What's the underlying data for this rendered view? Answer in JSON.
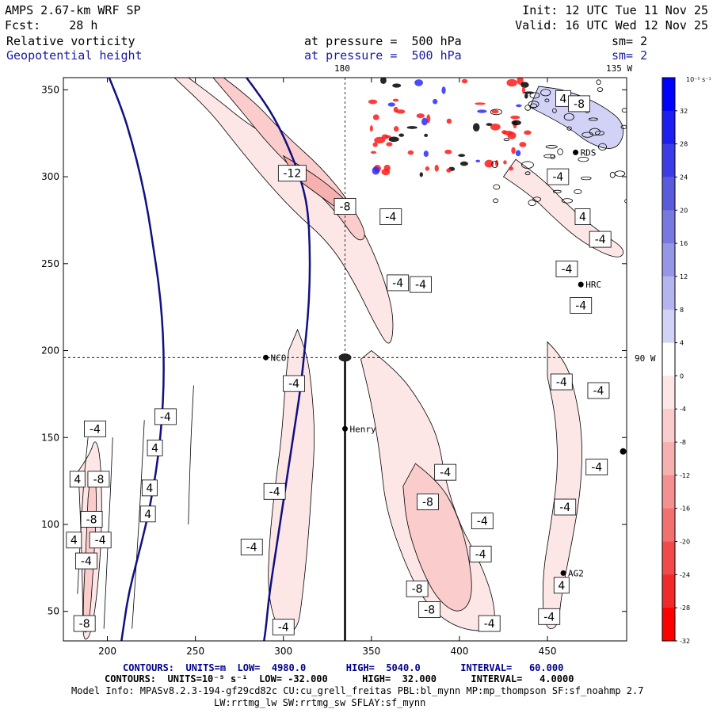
{
  "header": {
    "model": "AMPS 2.67-km WRF SP",
    "forecast": "Fcst:    28 h",
    "init": "Init: 12 UTC Tue 11 Nov 25",
    "valid": "Valid: 16 UTC Wed 12 Nov 25",
    "field1": "Relative vorticity",
    "field2": "Geopotential height",
    "pressure1": "at pressure =  500 hPa",
    "pressure2": "at pressure =  500 hPa",
    "sm1": "sm= 2",
    "sm2": "sm= 2"
  },
  "map_labels": {
    "lon_180": "180",
    "lon_135w": "135 W",
    "lon_90w": "90 W",
    "stations": [
      "NCO",
      "Henry",
      "HRC",
      "RDS",
      "AG2"
    ]
  },
  "colorbar": {
    "unit_label": "10⁻⁵ s⁻¹",
    "ticks": [
      "32",
      "28",
      "24",
      "20",
      "16",
      "12",
      "8",
      "4",
      "0",
      "-4",
      "-8",
      "-12",
      "-16",
      "-20",
      "-24",
      "-28",
      "-32"
    ],
    "colors": [
      "#0000ff",
      "#1e1ef0",
      "#3c3ce6",
      "#5a5adc",
      "#7878e1",
      "#9696e6",
      "#b4b4ee",
      "#d2d2f6",
      "#ffffff",
      "#fde6e6",
      "#fbcccc",
      "#f7b0b0",
      "#f49090",
      "#f27070",
      "#f04a4a",
      "#f02a2a",
      "#ff0000"
    ]
  },
  "chart_data": {
    "type": "contour",
    "title": "Relative vorticity and Geopotential height at 500 hPa",
    "x_ticks": [
      "200",
      "250",
      "300",
      "350",
      "400",
      "450"
    ],
    "y_ticks": [
      "50",
      "100",
      "150",
      "200",
      "250",
      "300",
      "350"
    ],
    "xlim": [
      175,
      495
    ],
    "ylim": [
      33,
      357
    ],
    "contour_labels": [
      {
        "x": 193,
        "y": 155,
        "text": "-4"
      },
      {
        "x": 233,
        "y": 162,
        "text": "-4"
      },
      {
        "x": 227,
        "y": 144,
        "text": "4"
      },
      {
        "x": 183,
        "y": 126,
        "text": "4"
      },
      {
        "x": 195,
        "y": 126,
        "text": "-8"
      },
      {
        "x": 224,
        "y": 121,
        "text": "4"
      },
      {
        "x": 223,
        "y": 106,
        "text": "4"
      },
      {
        "x": 191,
        "y": 103,
        "text": "-8"
      },
      {
        "x": 181,
        "y": 91,
        "text": "4"
      },
      {
        "x": 196,
        "y": 91,
        "text": "-4"
      },
      {
        "x": 188,
        "y": 79,
        "text": "-4"
      },
      {
        "x": 187,
        "y": 43,
        "text": "-8"
      },
      {
        "x": 305,
        "y": 302,
        "text": "-12"
      },
      {
        "x": 335,
        "y": 283,
        "text": "-8"
      },
      {
        "x": 361,
        "y": 277,
        "text": "-4"
      },
      {
        "x": 365,
        "y": 239,
        "text": "-4"
      },
      {
        "x": 378,
        "y": 238,
        "text": "-4"
      },
      {
        "x": 459,
        "y": 345,
        "text": "4"
      },
      {
        "x": 468,
        "y": 342,
        "text": "-8"
      },
      {
        "x": 456,
        "y": 300,
        "text": "-4"
      },
      {
        "x": 470,
        "y": 277,
        "text": "4"
      },
      {
        "x": 480,
        "y": 264,
        "text": "-4"
      },
      {
        "x": 461,
        "y": 247,
        "text": "-4"
      },
      {
        "x": 469,
        "y": 226,
        "text": "-4"
      },
      {
        "x": 458,
        "y": 182,
        "text": "-4"
      },
      {
        "x": 479,
        "y": 177,
        "text": "-4"
      },
      {
        "x": 478,
        "y": 133,
        "text": "-4"
      },
      {
        "x": 460,
        "y": 110,
        "text": "-4"
      },
      {
        "x": 306,
        "y": 181,
        "text": "-4"
      },
      {
        "x": 295,
        "y": 119,
        "text": "-4"
      },
      {
        "x": 282,
        "y": 87,
        "text": "-4"
      },
      {
        "x": 300,
        "y": 41,
        "text": "-4"
      },
      {
        "x": 392,
        "y": 130,
        "text": "-4"
      },
      {
        "x": 382,
        "y": 113,
        "text": "-8"
      },
      {
        "x": 413,
        "y": 102,
        "text": "-4"
      },
      {
        "x": 412,
        "y": 83,
        "text": "-4"
      },
      {
        "x": 376,
        "y": 63,
        "text": "-8"
      },
      {
        "x": 383,
        "y": 51,
        "text": "-8"
      },
      {
        "x": 417,
        "y": 43,
        "text": "-4"
      },
      {
        "x": 458,
        "y": 65,
        "text": "4"
      },
      {
        "x": 451,
        "y": 47,
        "text": "-4"
      }
    ],
    "height_contours": [
      {
        "name": "height-west",
        "points": [
          [
            201,
            357
          ],
          [
            208,
            340
          ],
          [
            214,
            320
          ],
          [
            219,
            300
          ],
          [
            223,
            280
          ],
          [
            226,
            260
          ],
          [
            229,
            240
          ],
          [
            231,
            220
          ],
          [
            232,
            200
          ],
          [
            232,
            180
          ],
          [
            231,
            160
          ],
          [
            229,
            140
          ],
          [
            226,
            120
          ],
          [
            222,
            100
          ],
          [
            217,
            80
          ],
          [
            212,
            60
          ],
          [
            209,
            40
          ],
          [
            208,
            33
          ]
        ]
      },
      {
        "name": "height-east",
        "points": [
          [
            279,
            357
          ],
          [
            288,
            345
          ],
          [
            297,
            330
          ],
          [
            305,
            312
          ],
          [
            311,
            295
          ],
          [
            314,
            280
          ],
          [
            315,
            260
          ],
          [
            315,
            240
          ],
          [
            314,
            220
          ],
          [
            312,
            200
          ],
          [
            310,
            180
          ],
          [
            307,
            160
          ],
          [
            304,
            140
          ],
          [
            301,
            120
          ],
          [
            298,
            100
          ],
          [
            295,
            80
          ],
          [
            292,
            60
          ],
          [
            290,
            40
          ],
          [
            289,
            33
          ]
        ]
      }
    ],
    "shaded_regions": [
      {
        "name": "band-west",
        "color": "#fde6e6",
        "points": [
          [
            183,
            130
          ],
          [
            190,
            140
          ],
          [
            193,
            150
          ],
          [
            196,
            140
          ],
          [
            197,
            110
          ],
          [
            196,
            80
          ],
          [
            193,
            50
          ],
          [
            190,
            35
          ],
          [
            186,
            33
          ],
          [
            186,
            60
          ],
          [
            185,
            95
          ],
          [
            184,
            120
          ]
        ]
      },
      {
        "name": "band-west-strong",
        "color": "#fbcccc",
        "points": [
          [
            190,
            125
          ],
          [
            193,
            132
          ],
          [
            194,
            110
          ],
          [
            192,
            75
          ],
          [
            190,
            45
          ],
          [
            187,
            35
          ],
          [
            186,
            50
          ],
          [
            188,
            90
          ],
          [
            189,
            115
          ]
        ]
      },
      {
        "name": "band-center-north",
        "color": "#fde6e6",
        "points": [
          [
            246,
            357
          ],
          [
            262,
            345
          ],
          [
            280,
            330
          ],
          [
            305,
            315
          ],
          [
            330,
            295
          ],
          [
            345,
            270
          ],
          [
            356,
            245
          ],
          [
            363,
            220
          ],
          [
            361,
            200
          ],
          [
            352,
            215
          ],
          [
            340,
            240
          ],
          [
            326,
            262
          ],
          [
            306,
            280
          ],
          [
            288,
            300
          ],
          [
            272,
            320
          ],
          [
            258,
            338
          ],
          [
            238,
            357
          ]
        ]
      },
      {
        "name": "band-center-mid",
        "color": "#fbcccc",
        "points": [
          [
            266,
            357
          ],
          [
            282,
            345
          ],
          [
            300,
            325
          ],
          [
            322,
            305
          ],
          [
            338,
            285
          ],
          [
            348,
            266
          ],
          [
            342,
            262
          ],
          [
            330,
            280
          ],
          [
            312,
            298
          ],
          [
            292,
            318
          ],
          [
            276,
            338
          ],
          [
            260,
            357
          ]
        ]
      },
      {
        "name": "band-center-strong",
        "color": "#f7b0b0",
        "points": [
          [
            300,
            312
          ],
          [
            312,
            305
          ],
          [
            326,
            295
          ],
          [
            338,
            284
          ],
          [
            336,
            278
          ],
          [
            322,
            288
          ],
          [
            306,
            300
          ]
        ]
      },
      {
        "name": "band-center-south",
        "color": "#fde6e6",
        "points": [
          [
            308,
            212
          ],
          [
            313,
            200
          ],
          [
            316,
            180
          ],
          [
            318,
            150
          ],
          [
            316,
            120
          ],
          [
            314,
            90
          ],
          [
            311,
            60
          ],
          [
            308,
            38
          ],
          [
            297,
            38
          ],
          [
            291,
            60
          ],
          [
            292,
            90
          ],
          [
            295,
            120
          ],
          [
            299,
            150
          ],
          [
            301,
            180
          ],
          [
            303,
            200
          ]
        ]
      },
      {
        "name": "band-east-south",
        "color": "#fde6e6",
        "points": [
          [
            350,
            200
          ],
          [
            365,
            188
          ],
          [
            378,
            170
          ],
          [
            388,
            150
          ],
          [
            392,
            125
          ],
          [
            400,
            100
          ],
          [
            412,
            78
          ],
          [
            420,
            55
          ],
          [
            420,
            38
          ],
          [
            398,
            40
          ],
          [
            380,
            55
          ],
          [
            368,
            80
          ],
          [
            358,
            110
          ],
          [
            355,
            140
          ],
          [
            350,
            170
          ],
          [
            344,
            195
          ]
        ]
      },
      {
        "name": "band-east-south-strong",
        "color": "#fbcccc",
        "points": [
          [
            375,
            135
          ],
          [
            388,
            125
          ],
          [
            398,
            108
          ],
          [
            405,
            85
          ],
          [
            408,
            58
          ],
          [
            400,
            48
          ],
          [
            388,
            56
          ],
          [
            378,
            75
          ],
          [
            370,
            100
          ],
          [
            368,
            122
          ]
        ]
      },
      {
        "name": "band-far-east",
        "color": "#fde6e6",
        "points": [
          [
            450,
            205
          ],
          [
            460,
            195
          ],
          [
            466,
            175
          ],
          [
            470,
            150
          ],
          [
            469,
            120
          ],
          [
            464,
            90
          ],
          [
            458,
            60
          ],
          [
            456,
            40
          ],
          [
            448,
            40
          ],
          [
            447,
            70
          ],
          [
            452,
            100
          ],
          [
            456,
            130
          ],
          [
            455,
            160
          ],
          [
            450,
            185
          ]
        ]
      },
      {
        "name": "band-ne",
        "color": "#fde6e6",
        "points": [
          [
            425,
            300
          ],
          [
            440,
            290
          ],
          [
            455,
            275
          ],
          [
            470,
            262
          ],
          [
            490,
            252
          ],
          [
            495,
            258
          ],
          [
            480,
            268
          ],
          [
            463,
            282
          ],
          [
            448,
            298
          ],
          [
            432,
            310
          ]
        ]
      },
      {
        "name": "blue-ne",
        "color": "#d2d2f6",
        "points": [
          [
            440,
            340
          ],
          [
            460,
            330
          ],
          [
            475,
            318
          ],
          [
            490,
            315
          ],
          [
            495,
            330
          ],
          [
            480,
            342
          ],
          [
            460,
            350
          ],
          [
            445,
            352
          ]
        ]
      }
    ]
  },
  "footer": {
    "line1": "CONTOURS:  UNITS=m  LOW=  4980.0       HIGH=  5040.0       INTERVAL=   60.000",
    "line2": "CONTOURS:  UNITS=10⁻⁵ s⁻¹  LOW= -32.000      HIGH=  32.000      INTERVAL=   4.0000",
    "line3": "Model Info: MPASv8.2.3-194-gf29cd82c CU:cu_grell_freitas PBL:bl_mynn MP:mp_thompson SF:sf_noahmp 2.7",
    "line4": "LW:rrtmg_lw SW:rrtmg_sw SFLAY:sf_mynn"
  }
}
